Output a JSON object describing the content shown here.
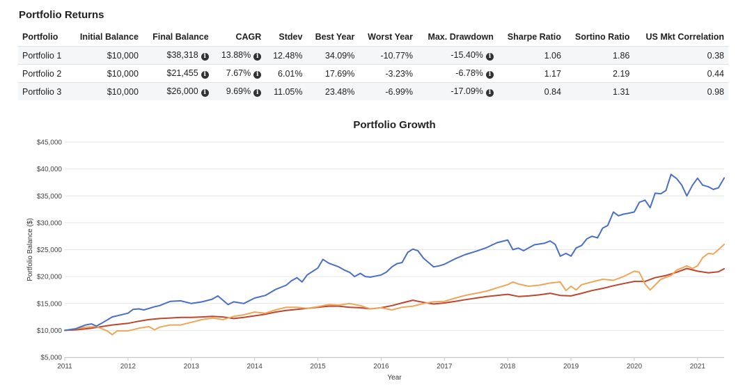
{
  "section_title": "Portfolio Returns",
  "table": {
    "headers": [
      "Portfolio",
      "Initial Balance",
      "Final Balance",
      "CAGR",
      "Stdev",
      "Best Year",
      "Worst Year",
      "Max. Drawdown",
      "Sharpe Ratio",
      "Sortino Ratio",
      "US Mkt Correlation"
    ],
    "rows": [
      [
        "Portfolio 1",
        "$10,000",
        "$38,318",
        "13.88%",
        "12.48%",
        "34.09%",
        "-10.77%",
        "-15.40%",
        "1.06",
        "1.86",
        "0.38"
      ],
      [
        "Portfolio 2",
        "$10,000",
        "$21,455",
        "7.67%",
        "6.01%",
        "17.69%",
        "-3.23%",
        "-6.78%",
        "1.17",
        "2.19",
        "0.44"
      ],
      [
        "Portfolio 3",
        "$10,000",
        "$26,000",
        "9.69%",
        "11.05%",
        "23.48%",
        "-6.99%",
        "-17.09%",
        "0.84",
        "1.31",
        "0.98"
      ]
    ],
    "info_icon": "info-circle-icon",
    "info_columns": [
      2,
      3,
      7
    ]
  },
  "chart_data": {
    "type": "line",
    "title": "Portfolio Growth",
    "xlabel": "Year",
    "ylabel": "Portfolio Balance ($)",
    "xlim": [
      2011,
      2021.42
    ],
    "ylim": [
      5000,
      45000
    ],
    "x_ticks": [
      2011,
      2012,
      2013,
      2014,
      2015,
      2016,
      2017,
      2018,
      2019,
      2020,
      2021
    ],
    "y_ticks": [
      5000,
      10000,
      15000,
      20000,
      25000,
      30000,
      35000,
      40000,
      45000
    ],
    "y_tick_labels": [
      "$5,000",
      "$10,000",
      "$15,000",
      "$20,000",
      "$25,000",
      "$30,000",
      "$35,000",
      "$40,000",
      "$45,000"
    ],
    "grid": true,
    "series": [
      {
        "name": "Portfolio 1",
        "color": "#4a6fc8",
        "x": [
          2011,
          2011.17,
          2011.33,
          2011.42,
          2011.5,
          2011.58,
          2011.75,
          2012,
          2012.08,
          2012.17,
          2012.25,
          2012.42,
          2012.5,
          2012.58,
          2012.67,
          2012.83,
          2013,
          2013.17,
          2013.33,
          2013.42,
          2013.5,
          2013.58,
          2013.67,
          2013.83,
          2014,
          2014.17,
          2014.33,
          2014.5,
          2014.58,
          2014.67,
          2014.75,
          2014.83,
          2015,
          2015.08,
          2015.17,
          2015.33,
          2015.42,
          2015.5,
          2015.58,
          2015.67,
          2015.75,
          2015.83,
          2016,
          2016.08,
          2016.17,
          2016.25,
          2016.33,
          2016.42,
          2016.5,
          2016.58,
          2016.67,
          2016.83,
          2016.92,
          2017,
          2017.17,
          2017.33,
          2017.5,
          2017.67,
          2017.83,
          2018,
          2018.08,
          2018.17,
          2018.25,
          2018.42,
          2018.58,
          2018.67,
          2018.75,
          2018.83,
          2018.92,
          2019,
          2019.08,
          2019.17,
          2019.25,
          2019.33,
          2019.42,
          2019.5,
          2019.58,
          2019.67,
          2019.75,
          2019.83,
          2019.92,
          2020,
          2020.08,
          2020.17,
          2020.25,
          2020.33,
          2020.42,
          2020.5,
          2020.58,
          2020.67,
          2020.75,
          2020.83,
          2020.92,
          2021,
          2021.08,
          2021.17,
          2021.25,
          2021.33,
          2021.42
        ],
        "values": [
          10000,
          10300,
          11000,
          11200,
          10800,
          11300,
          12500,
          13200,
          13900,
          14000,
          13800,
          14400,
          14600,
          15000,
          15400,
          15500,
          15000,
          15300,
          15800,
          16400,
          15600,
          14800,
          15300,
          15000,
          16000,
          16500,
          17600,
          18400,
          19200,
          19800,
          19000,
          20300,
          21600,
          23200,
          22500,
          21800,
          21200,
          20800,
          20000,
          20600,
          20000,
          19900,
          20300,
          20800,
          21800,
          22400,
          22600,
          24500,
          25100,
          24800,
          23400,
          21800,
          22000,
          22300,
          23300,
          24100,
          24700,
          25400,
          26300,
          26800,
          25000,
          25300,
          24800,
          25900,
          26200,
          26600,
          26000,
          23800,
          24300,
          23800,
          25300,
          25800,
          27000,
          27500,
          27200,
          29000,
          29500,
          32000,
          31300,
          31600,
          31800,
          32000,
          33800,
          34200,
          32800,
          35500,
          35400,
          36000,
          39000,
          38200,
          37000,
          35000,
          37000,
          38300,
          37000,
          36700,
          36200,
          36500,
          38318
        ]
      },
      {
        "name": "Portfolio 2",
        "color": "#c0452c",
        "x": [
          2011,
          2011.17,
          2011.42,
          2011.58,
          2011.75,
          2012,
          2012.17,
          2012.33,
          2012.5,
          2012.67,
          2012.83,
          2013,
          2013.17,
          2013.33,
          2013.5,
          2013.67,
          2013.83,
          2014,
          2014.17,
          2014.33,
          2014.5,
          2014.67,
          2014.83,
          2015,
          2015.17,
          2015.33,
          2015.5,
          2015.67,
          2015.83,
          2016,
          2016.17,
          2016.33,
          2016.5,
          2016.67,
          2016.83,
          2017,
          2017.17,
          2017.33,
          2017.5,
          2017.67,
          2017.83,
          2018,
          2018.17,
          2018.33,
          2018.5,
          2018.67,
          2018.83,
          2019,
          2019.17,
          2019.33,
          2019.5,
          2019.67,
          2019.83,
          2020,
          2020.17,
          2020.33,
          2020.5,
          2020.67,
          2020.83,
          2021,
          2021.17,
          2021.33,
          2021.42
        ],
        "values": [
          10000,
          10100,
          10400,
          10700,
          11000,
          11300,
          11700,
          12000,
          12200,
          12300,
          12400,
          12400,
          12500,
          12600,
          12500,
          12200,
          12400,
          12700,
          13000,
          13400,
          13700,
          13900,
          14100,
          14300,
          14500,
          14500,
          14300,
          14200,
          14000,
          14200,
          14600,
          15100,
          15600,
          15200,
          14900,
          15100,
          15400,
          15700,
          16000,
          16300,
          16500,
          16700,
          16300,
          16400,
          16600,
          16900,
          16500,
          16400,
          16900,
          17400,
          17800,
          18300,
          18700,
          19100,
          19100,
          19800,
          20200,
          20800,
          21500,
          21000,
          20700,
          20900,
          21455
        ]
      },
      {
        "name": "Portfolio 3",
        "color": "#f0a558",
        "x": [
          2011,
          2011.17,
          2011.33,
          2011.5,
          2011.67,
          2011.75,
          2011.83,
          2012,
          2012.17,
          2012.33,
          2012.42,
          2012.5,
          2012.67,
          2012.83,
          2013,
          2013.17,
          2013.33,
          2013.5,
          2013.67,
          2013.83,
          2014,
          2014.17,
          2014.33,
          2014.5,
          2014.67,
          2014.83,
          2015,
          2015.17,
          2015.33,
          2015.5,
          2015.67,
          2015.83,
          2016,
          2016.17,
          2016.33,
          2016.5,
          2016.67,
          2016.83,
          2017,
          2017.17,
          2017.33,
          2017.5,
          2017.67,
          2017.83,
          2018,
          2018.08,
          2018.17,
          2018.33,
          2018.5,
          2018.67,
          2018.83,
          2018.92,
          2019,
          2019.08,
          2019.17,
          2019.33,
          2019.5,
          2019.67,
          2019.83,
          2020,
          2020.08,
          2020.17,
          2020.25,
          2020.42,
          2020.58,
          2020.67,
          2020.83,
          2020.92,
          2021,
          2021.08,
          2021.17,
          2021.25,
          2021.33,
          2021.42
        ],
        "values": [
          10000,
          10300,
          10600,
          10700,
          9900,
          9200,
          9900,
          9900,
          10400,
          10700,
          10100,
          10600,
          11000,
          11000,
          11500,
          12000,
          12300,
          12000,
          12600,
          12900,
          13400,
          13200,
          13800,
          14300,
          14300,
          14100,
          14400,
          14800,
          14700,
          15000,
          14600,
          14000,
          14200,
          13800,
          14300,
          14500,
          15000,
          15300,
          15400,
          16000,
          16500,
          16900,
          17300,
          17900,
          18500,
          19000,
          18600,
          18200,
          18400,
          18800,
          19000,
          17400,
          18200,
          17500,
          18500,
          19000,
          19500,
          19300,
          20000,
          21000,
          20800,
          18600,
          17500,
          19500,
          20200,
          21200,
          22000,
          21500,
          22000,
          23500,
          24300,
          24200,
          25000,
          26000
        ]
      }
    ]
  }
}
